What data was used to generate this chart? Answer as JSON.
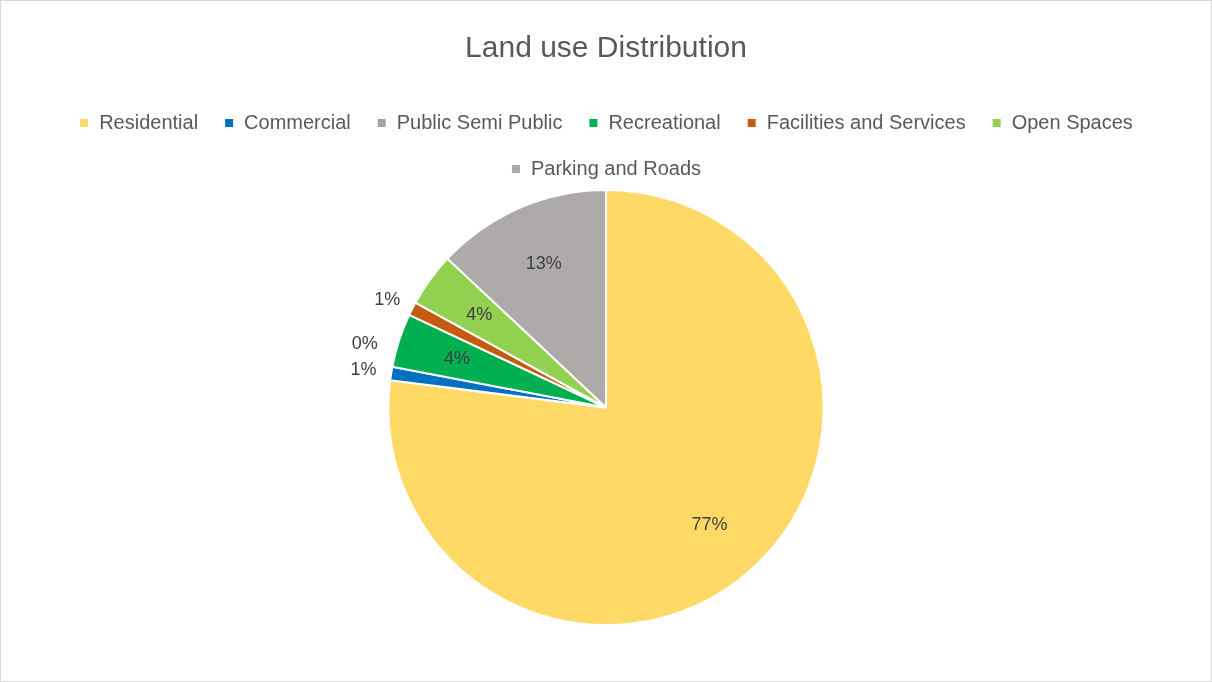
{
  "chart_data": {
    "type": "pie",
    "title": "Land use Distribution",
    "categories": [
      "Residential",
      "Commercial",
      "Public Semi Public",
      "Recreational",
      "Facilities and Services",
      "Open Spaces",
      "Parking and Roads"
    ],
    "values": [
      77,
      1,
      0,
      4,
      1,
      4,
      13
    ],
    "value_labels": [
      "77%",
      "1%",
      "0%",
      "4%",
      "1%",
      "4%",
      "13%"
    ],
    "colors": [
      "#ffd966",
      "#0070c0",
      "#a5a5a5",
      "#00b050",
      "#c55a11",
      "#92d050",
      "#aeaaaa"
    ],
    "legend": "top"
  }
}
